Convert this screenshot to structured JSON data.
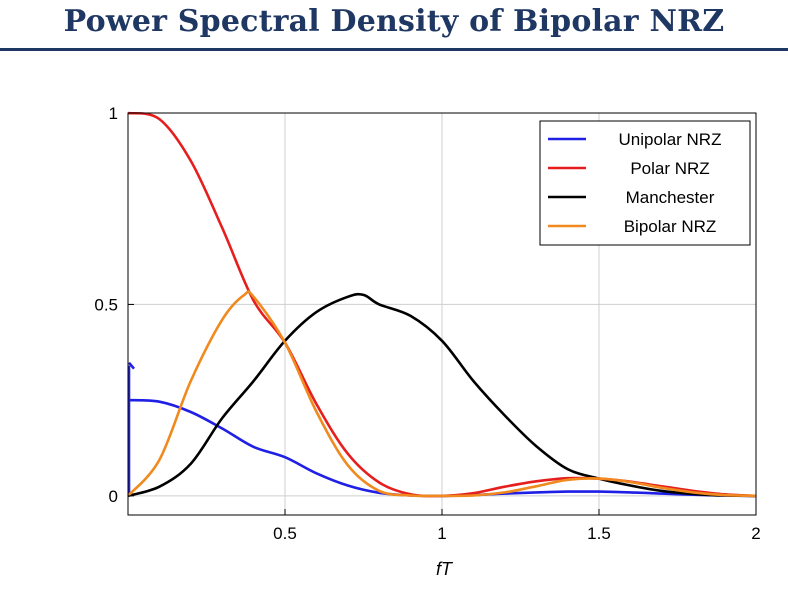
{
  "slide": {
    "title": "Power Spectral Density of Bipolar NRZ"
  },
  "chart_data": {
    "type": "line",
    "title": "",
    "xlabel": "fT",
    "ylabel": "",
    "xlim": [
      0,
      2
    ],
    "ylim": [
      -0.05,
      1
    ],
    "x_ticks": [
      0.5,
      1,
      1.5,
      2
    ],
    "x_tick_labels": [
      "0.5",
      "1",
      "1.5",
      "2"
    ],
    "y_ticks": [
      0,
      0.5,
      1
    ],
    "y_tick_labels": [
      "0",
      "0.5",
      "1"
    ],
    "grid": true,
    "legend_position": "top-right",
    "series": [
      {
        "name": "Unipolar NRZ",
        "color": "#1f1fe6",
        "points": [
          [
            0,
            0.25
          ],
          [
            0.1,
            0.246
          ],
          [
            0.2,
            0.219
          ],
          [
            0.3,
            0.176
          ],
          [
            0.4,
            0.128
          ],
          [
            0.5,
            0.101
          ],
          [
            0.6,
            0.059
          ],
          [
            0.7,
            0.027
          ],
          [
            0.8,
            0.008
          ],
          [
            0.9,
            0.001
          ],
          [
            1.0,
            0
          ],
          [
            1.1,
            0.002
          ],
          [
            1.2,
            0.006
          ],
          [
            1.3,
            0.009
          ],
          [
            1.4,
            0.011
          ],
          [
            1.5,
            0.011
          ],
          [
            1.6,
            0.009
          ],
          [
            1.7,
            0.006
          ],
          [
            1.8,
            0.003
          ],
          [
            1.9,
            0.001
          ],
          [
            2.0,
            0
          ]
        ],
        "impulse": {
          "x": 0,
          "y": 0.34
        }
      },
      {
        "name": "Polar NRZ",
        "color": "#e61e1e",
        "points": [
          [
            0,
            1
          ],
          [
            0.1,
            0.984
          ],
          [
            0.2,
            0.875
          ],
          [
            0.3,
            0.7
          ],
          [
            0.4,
            0.51
          ],
          [
            0.5,
            0.4
          ],
          [
            0.6,
            0.24
          ],
          [
            0.7,
            0.11
          ],
          [
            0.8,
            0.035
          ],
          [
            0.9,
            0.004
          ],
          [
            1.0,
            0
          ],
          [
            1.1,
            0.007
          ],
          [
            1.2,
            0.024
          ],
          [
            1.3,
            0.038
          ],
          [
            1.4,
            0.046
          ],
          [
            1.5,
            0.045
          ],
          [
            1.6,
            0.037
          ],
          [
            1.7,
            0.025
          ],
          [
            1.8,
            0.013
          ],
          [
            1.9,
            0.004
          ],
          [
            2.0,
            0
          ]
        ]
      },
      {
        "name": "Manchester",
        "color": "#000000",
        "points": [
          [
            0,
            0
          ],
          [
            0.1,
            0.024
          ],
          [
            0.2,
            0.084
          ],
          [
            0.3,
            0.203
          ],
          [
            0.4,
            0.3
          ],
          [
            0.5,
            0.405
          ],
          [
            0.6,
            0.48
          ],
          [
            0.7,
            0.52
          ],
          [
            0.75,
            0.525
          ],
          [
            0.8,
            0.5
          ],
          [
            0.9,
            0.47
          ],
          [
            1.0,
            0.405
          ],
          [
            1.1,
            0.3
          ],
          [
            1.2,
            0.21
          ],
          [
            1.3,
            0.13
          ],
          [
            1.4,
            0.07
          ],
          [
            1.5,
            0.045
          ],
          [
            1.6,
            0.027
          ],
          [
            1.7,
            0.013
          ],
          [
            1.8,
            0.005
          ],
          [
            1.9,
            0.001
          ],
          [
            2.0,
            0
          ]
        ]
      },
      {
        "name": "Bipolar NRZ",
        "color": "#f08a1e",
        "points": [
          [
            0,
            0
          ],
          [
            0.1,
            0.094
          ],
          [
            0.2,
            0.3
          ],
          [
            0.3,
            0.46
          ],
          [
            0.37,
            0.525
          ],
          [
            0.4,
            0.52
          ],
          [
            0.5,
            0.4
          ],
          [
            0.6,
            0.22
          ],
          [
            0.7,
            0.08
          ],
          [
            0.8,
            0.013
          ],
          [
            0.9,
            0.001
          ],
          [
            1.0,
            0
          ],
          [
            1.1,
            0.001
          ],
          [
            1.2,
            0.009
          ],
          [
            1.3,
            0.025
          ],
          [
            1.4,
            0.042
          ],
          [
            1.5,
            0.045
          ],
          [
            1.6,
            0.036
          ],
          [
            1.7,
            0.021
          ],
          [
            1.8,
            0.009
          ],
          [
            1.9,
            0.002
          ],
          [
            2.0,
            0
          ]
        ]
      }
    ]
  }
}
